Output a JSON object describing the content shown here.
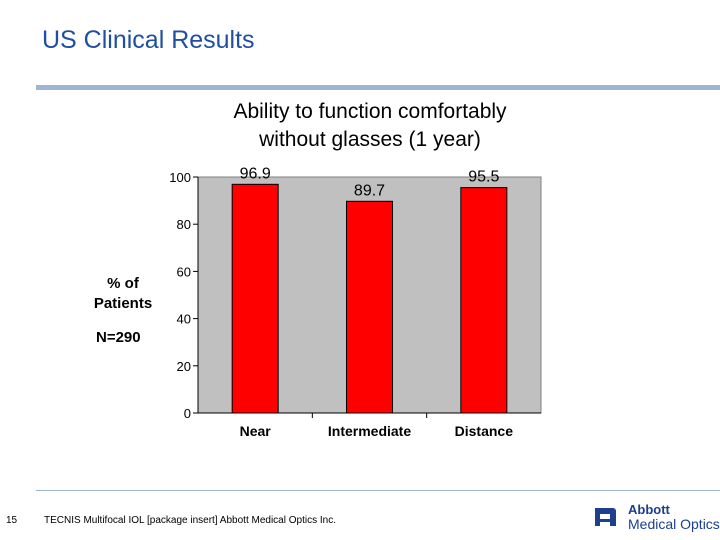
{
  "slide": {
    "title": "US Clinical Results",
    "page_number": "15",
    "footer": "TECNIS Multifocal IOL [package insert] Abbott Medical Optics Inc.",
    "logo_line1": "Abbott",
    "logo_line2": "Medical Optics"
  },
  "chart_labels": {
    "ylabel_line1": "% of",
    "ylabel_line2": "Patients",
    "sample_size": "N=290"
  },
  "colors": {
    "title": "#1f4fa0",
    "bar": "#ff0000",
    "plot_bg": "#c0c0c0",
    "rule": "#9fb6d2",
    "logo": "#1c3f8f"
  },
  "chart_data": {
    "type": "bar",
    "title_line1": "Ability to function comfortably",
    "title_line2": "without glasses (1 year)",
    "categories": [
      "Near",
      "Intermediate",
      "Distance"
    ],
    "values": [
      96.9,
      89.7,
      95.5
    ],
    "value_labels": [
      "96.9",
      "89.7",
      "95.5"
    ],
    "ylim": [
      0,
      100
    ],
    "yticks": [
      0,
      20,
      40,
      60,
      80,
      100
    ],
    "xlabel": "",
    "ylabel": "% of Patients",
    "grid": false
  }
}
